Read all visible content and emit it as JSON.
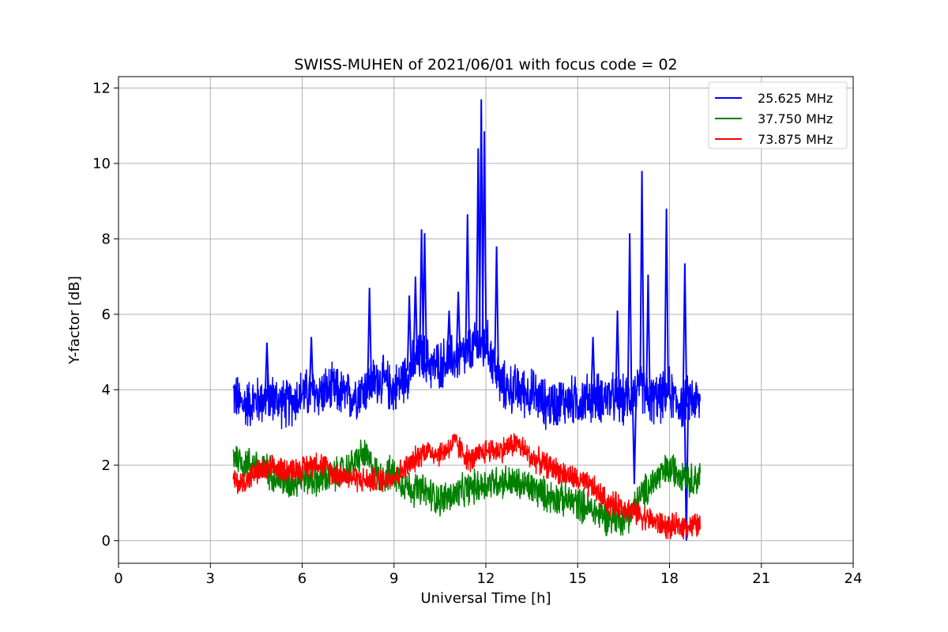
{
  "chart_data": {
    "type": "line",
    "title": "SWISS-MUHEN of 2021/06/01 with focus code = 02",
    "xlabel": "Universal Time [h]",
    "ylabel": "Y-factor [dB]",
    "xlim": [
      0,
      24
    ],
    "ylim": [
      -0.6,
      12.3
    ],
    "xticks": [
      0,
      3,
      6,
      9,
      12,
      15,
      18,
      21,
      24
    ],
    "xtick_labels": [
      "0",
      "3",
      "6",
      "9",
      "12",
      "15",
      "18",
      "21",
      "24"
    ],
    "yticks": [
      0,
      2,
      4,
      6,
      8,
      10,
      12
    ],
    "ytick_labels": [
      "0",
      "2",
      "4",
      "6",
      "8",
      "10",
      "12"
    ],
    "grid": true,
    "legend_position": "top-right",
    "series": [
      {
        "name": "25.625 MHz",
        "color": "#0000ff",
        "x": [
          3.75,
          4.0,
          4.5,
          5.0,
          5.5,
          6.0,
          6.5,
          7.0,
          7.5,
          8.0,
          8.5,
          9.0,
          9.5,
          9.9,
          10.3,
          10.8,
          11.3,
          11.8,
          11.9,
          12.0,
          12.3,
          12.5,
          13.0,
          13.5,
          14.0,
          14.5,
          15.0,
          15.5,
          16.0,
          16.5,
          16.8,
          17.1,
          17.3,
          17.8,
          17.95,
          18.2,
          18.5,
          18.7,
          19.0
        ],
        "y": [
          3.9,
          3.6,
          3.7,
          3.8,
          3.6,
          3.9,
          3.9,
          4.0,
          3.8,
          4.0,
          4.3,
          4.0,
          4.5,
          4.9,
          4.6,
          4.8,
          4.9,
          5.2,
          5.0,
          5.3,
          4.6,
          4.1,
          4.0,
          3.9,
          3.6,
          3.7,
          3.7,
          3.8,
          3.8,
          3.7,
          3.9,
          4.1,
          3.7,
          3.8,
          4.0,
          3.7,
          3.6,
          3.8,
          3.6
        ],
        "spikes": [
          [
            4.85,
            5.25
          ],
          [
            6.3,
            5.4
          ],
          [
            8.2,
            6.7
          ],
          [
            9.5,
            6.5
          ],
          [
            9.7,
            7.0
          ],
          [
            9.9,
            8.25
          ],
          [
            10.0,
            8.15
          ],
          [
            10.8,
            6.1
          ],
          [
            11.1,
            6.6
          ],
          [
            11.4,
            8.65
          ],
          [
            11.75,
            10.4
          ],
          [
            11.85,
            11.7
          ],
          [
            11.95,
            10.85
          ],
          [
            12.35,
            7.8
          ],
          [
            15.5,
            5.4
          ],
          [
            16.3,
            6.1
          ],
          [
            16.7,
            8.15
          ],
          [
            17.1,
            9.8
          ],
          [
            17.3,
            7.05
          ],
          [
            17.9,
            8.8
          ],
          [
            18.5,
            7.35
          ],
          [
            16.85,
            1.5
          ],
          [
            18.55,
            0.0
          ]
        ]
      },
      {
        "name": "37.750 MHz",
        "color": "#008000",
        "x": [
          3.75,
          4.0,
          4.5,
          5.0,
          5.5,
          6.0,
          6.5,
          7.0,
          7.5,
          8.0,
          8.5,
          9.0,
          9.5,
          10.0,
          10.5,
          11.0,
          11.5,
          12.0,
          12.5,
          13.0,
          13.5,
          14.0,
          14.5,
          15.0,
          15.5,
          16.0,
          16.5,
          16.8,
          17.0,
          17.5,
          18.0,
          18.5,
          18.7,
          19.0
        ],
        "y": [
          2.3,
          2.1,
          2.0,
          1.8,
          1.5,
          1.7,
          1.6,
          1.7,
          1.9,
          2.3,
          1.7,
          1.8,
          1.4,
          1.3,
          1.1,
          1.2,
          1.4,
          1.5,
          1.6,
          1.5,
          1.4,
          1.2,
          1.1,
          1.0,
          0.8,
          0.6,
          0.6,
          0.8,
          1.1,
          1.6,
          1.9,
          1.8,
          1.6,
          1.7
        ]
      },
      {
        "name": "73.875 MHz",
        "color": "#ff0000",
        "x": [
          3.75,
          4.0,
          4.5,
          5.0,
          5.5,
          6.0,
          6.5,
          7.0,
          7.5,
          8.0,
          8.5,
          9.0,
          9.5,
          10.0,
          10.5,
          11.0,
          11.5,
          12.0,
          12.5,
          13.0,
          13.5,
          14.0,
          14.5,
          15.0,
          15.5,
          16.0,
          16.5,
          17.0,
          17.5,
          18.0,
          18.5,
          19.0
        ],
        "y": [
          1.6,
          1.5,
          1.8,
          1.9,
          1.9,
          1.9,
          2.1,
          1.8,
          1.7,
          1.6,
          1.6,
          1.7,
          2.0,
          2.4,
          2.3,
          2.6,
          2.1,
          2.4,
          2.4,
          2.6,
          2.2,
          2.0,
          1.8,
          1.6,
          1.4,
          1.0,
          0.9,
          0.7,
          0.5,
          0.35,
          0.4,
          0.4
        ]
      }
    ]
  }
}
